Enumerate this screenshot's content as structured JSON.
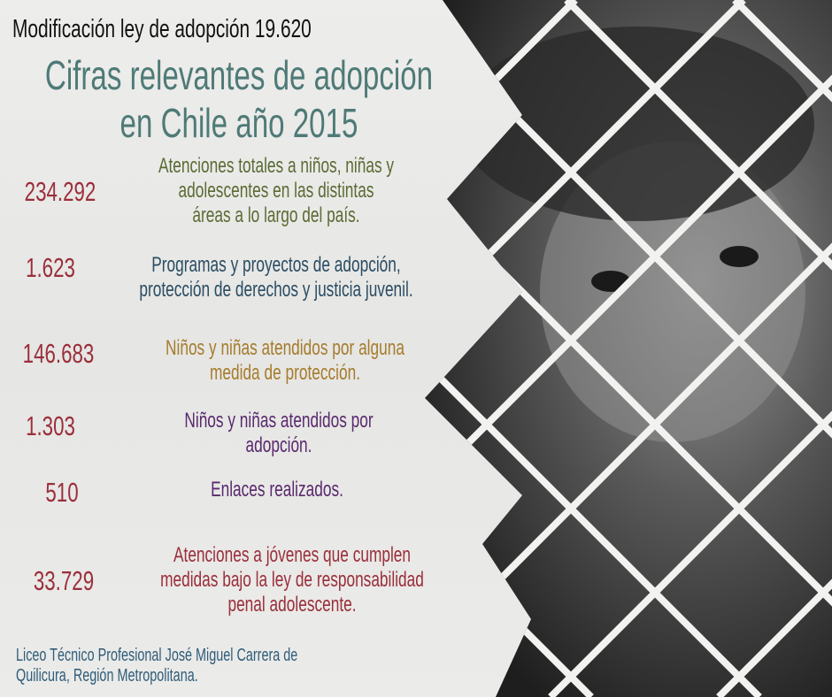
{
  "header": {
    "subtitle": "Modificación ley de adopción 19.620",
    "title_line1": "Cifras relevantes de adopción",
    "title_line2": "en Chile año 2015"
  },
  "stats": [
    {
      "number": "234.292",
      "lines": [
        "Atenciones totales a niños, niñas y",
        "adolescentes en las distintas",
        "áreas a lo largo del país."
      ],
      "color": "#5a6b34"
    },
    {
      "number": "1.623",
      "lines": [
        "Programas y proyectos de adopción,",
        "protección de derechos y justicia juvenil."
      ],
      "color": "#2b4d63"
    },
    {
      "number": "146.683",
      "lines": [
        "Niños y niñas atendidos por alguna",
        "medida de protección."
      ],
      "color": "#a67c2c"
    },
    {
      "number": "1.303",
      "lines": [
        "Niños y niñas atendidos por",
        "adopción."
      ],
      "color": "#5a2a6e"
    },
    {
      "number": "510",
      "lines": [
        "Enlaces realizados."
      ],
      "color": "#5a2a6e"
    },
    {
      "number": "33.729",
      "lines": [
        "Atenciones a jóvenes que cumplen",
        "medidas bajo la ley de responsabilidad",
        "penal adolescente."
      ],
      "color": "#9a2f3b"
    }
  ],
  "number_color": "#9a2f3b",
  "footer": {
    "line1": "Liceo Técnico Profesional José Miguel Carrera de",
    "line2": "Quilicura, Región Metropolitana."
  }
}
